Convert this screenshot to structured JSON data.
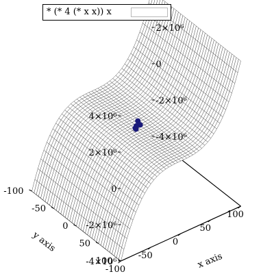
{
  "chart_data": {
    "type": "surface3d",
    "function": "* (* 4 (* x x)) x",
    "x": {
      "label": "x axis",
      "range": [
        -100,
        100
      ],
      "ticks": [
        "-100",
        "-50",
        "0",
        "50",
        "100"
      ]
    },
    "y": {
      "label": "y axis",
      "range": [
        -100,
        100
      ],
      "ticks": [
        "-100",
        "-50",
        "0",
        "50",
        "100"
      ]
    },
    "z": {
      "range": [
        -4000000,
        4000000
      ],
      "ticks": [
        "-4×10⁶",
        "-2×10⁶",
        "0",
        "2×10⁶",
        "4×10⁶"
      ]
    },
    "legend": {
      "label": "* (* 4 (* x x)) x",
      "position": "top-left"
    },
    "points": {
      "color": "#1a1a7a",
      "values": [
        [
          2,
          6,
          150000
        ],
        [
          -4,
          3,
          0
        ],
        [
          4,
          -2,
          180000
        ],
        [
          -2,
          2,
          -100000
        ],
        [
          0,
          0,
          0
        ]
      ]
    },
    "grid": false
  }
}
